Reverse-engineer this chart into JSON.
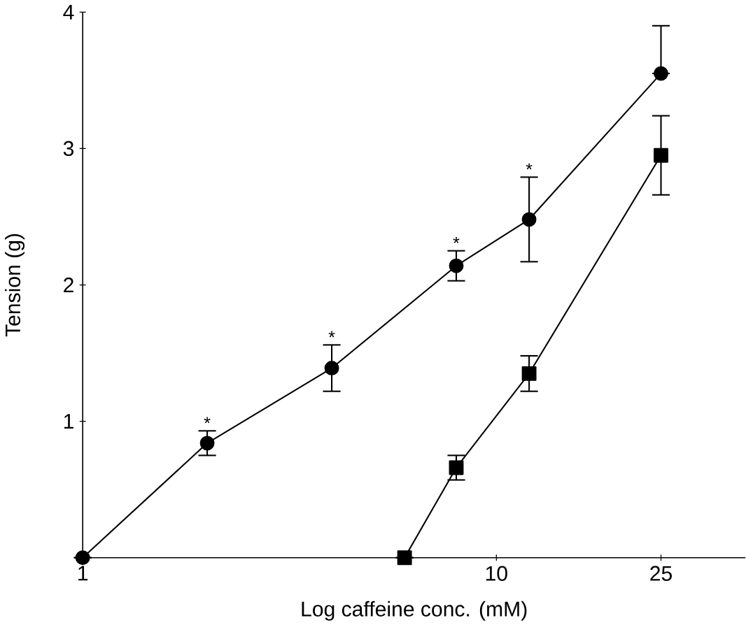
{
  "chart_data": {
    "type": "line",
    "xlabel": "Log caffeine conc. (mM)",
    "ylabel": "Tension (g)",
    "log": "x",
    "xlim": [
      1,
      40
    ],
    "xticks": [
      1,
      10,
      25
    ],
    "ylim": [
      0,
      4
    ],
    "yticks": [
      1,
      2,
      3,
      4
    ],
    "grid": false,
    "line_style": "solid",
    "series": [
      {
        "color": "#000000",
        "marker": "circle",
        "x": [
          1,
          2,
          4,
          8,
          12,
          25
        ],
        "values": [
          0,
          0.84,
          1.39,
          2.14,
          2.48,
          3.55
        ],
        "errors": [
          null,
          0.09,
          0.17,
          0.11,
          0.31,
          [
            3.55,
            3.9
          ]
        ]
      },
      {
        "color": "#000000",
        "marker": "square",
        "x": [
          6,
          8,
          12,
          25
        ],
        "values": [
          0,
          0.66,
          1.35,
          2.95
        ],
        "errors": [
          null,
          0.09,
          0.13,
          0.29
        ]
      }
    ],
    "annotations": [
      {
        "text": "*",
        "x": 2,
        "y": 0.93
      },
      {
        "text": "*",
        "x": 4,
        "y": 1.56
      },
      {
        "text": "*",
        "x": 8,
        "y": 2.25
      },
      {
        "text": "*",
        "x": 12,
        "y": 2.79
      }
    ]
  }
}
